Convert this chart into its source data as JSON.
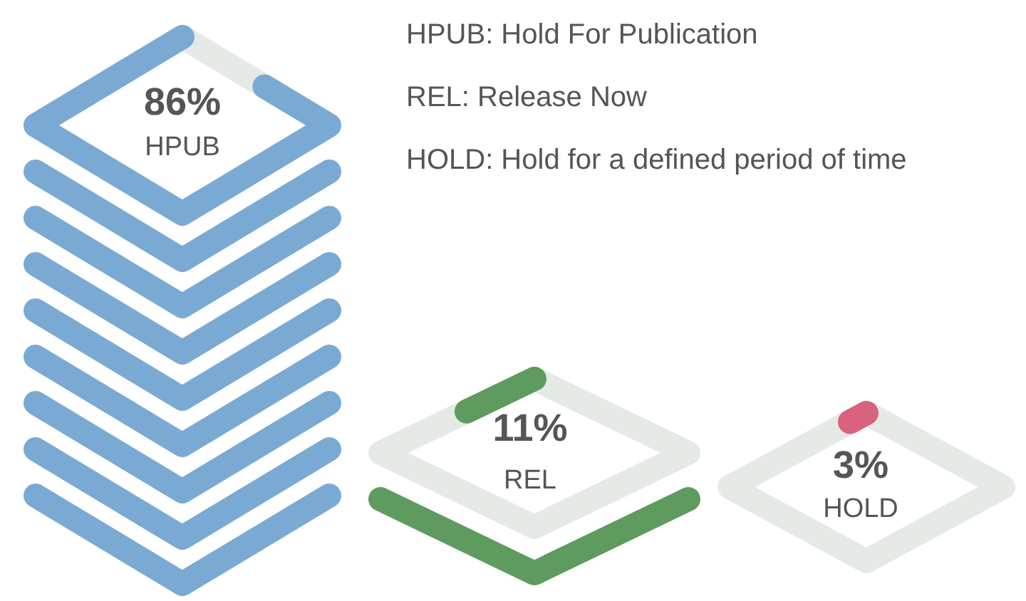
{
  "chart_data": {
    "type": "other",
    "categories": [
      "HPUB",
      "REL",
      "HOLD"
    ],
    "values": [
      86,
      11,
      3
    ],
    "value_labels": [
      "86%",
      "11%",
      "3%"
    ],
    "colors": [
      "#7aaad4",
      "#5f9a5f",
      "#d9627f"
    ],
    "annotations": [
      "HPUB: Hold For Publication",
      "REL: Release Now",
      "HOLD: Hold for a defined period of time"
    ]
  }
}
